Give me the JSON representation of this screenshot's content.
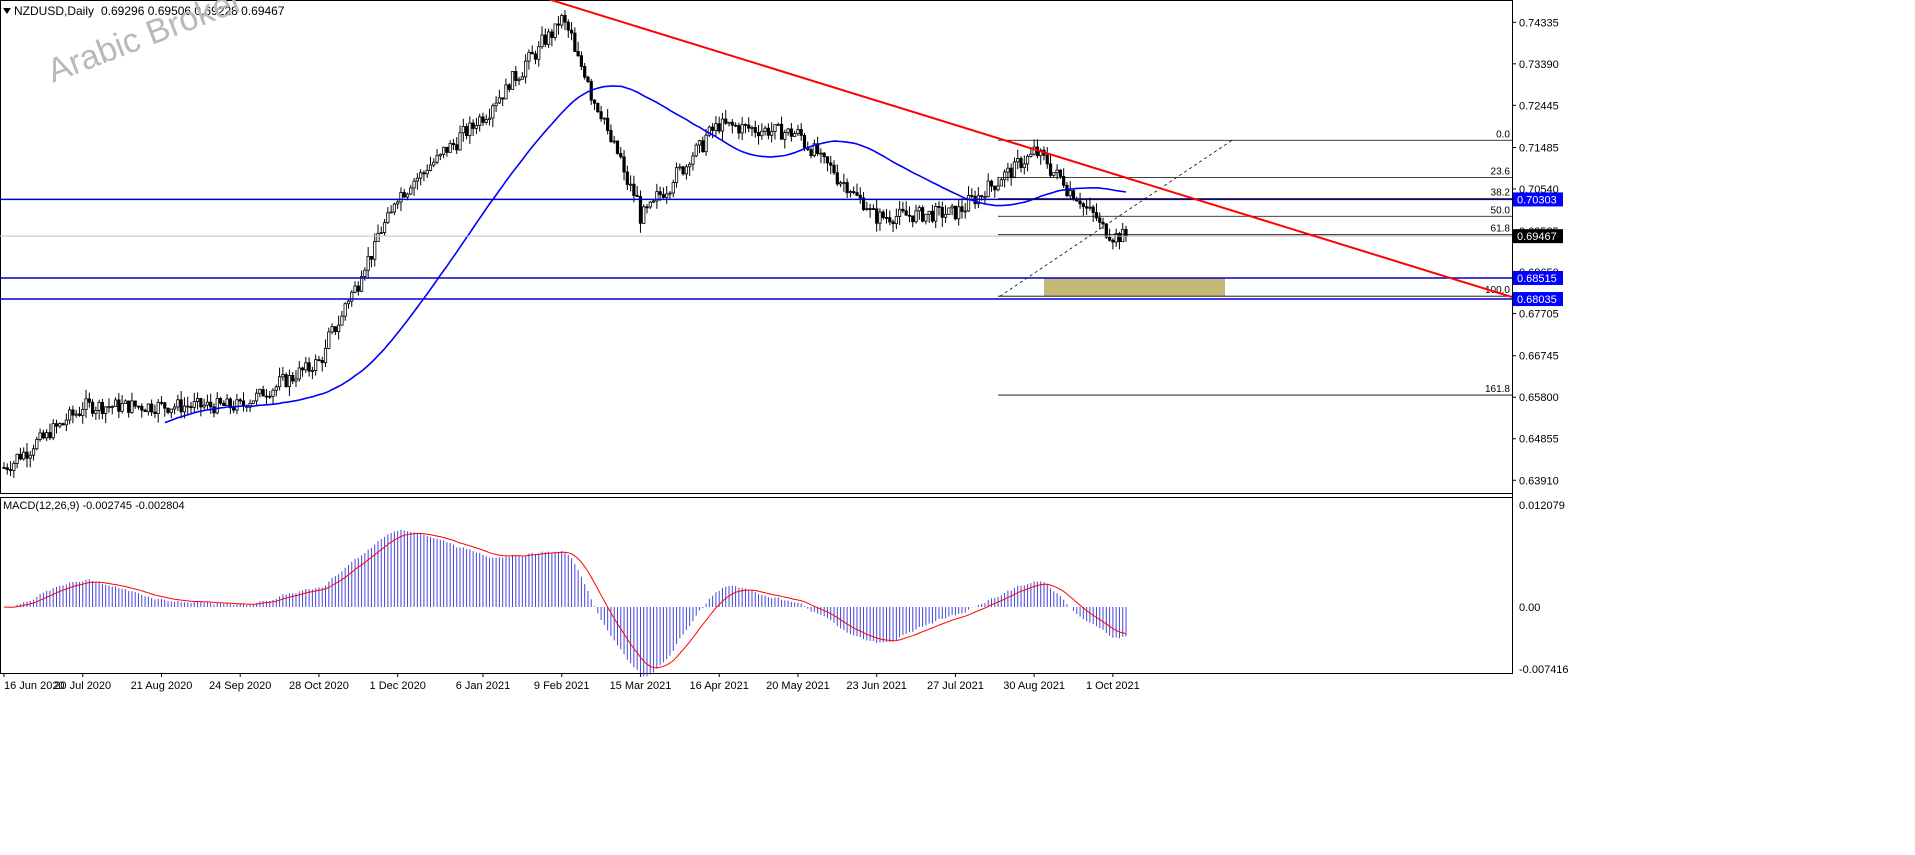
{
  "header": {
    "symbol": "NZDUSD,Daily",
    "ohlc": "0.69296 0.69506 0.69228 0.69467",
    "watermark": "Arabic Broker"
  },
  "price_axis": {
    "ticks": [
      "0.74335",
      "0.73390",
      "0.72445",
      "0.71485",
      "0.70540",
      "0.69585",
      "0.68650",
      "0.67705",
      "0.66745",
      "0.65800",
      "0.64855",
      "0.63910"
    ],
    "current_price": "0.69467"
  },
  "horizontal_levels": [
    {
      "label": "0.70303",
      "value": 0.70303
    },
    {
      "label": "0.68515",
      "value": 0.68515
    },
    {
      "label": "0.68035",
      "value": 0.68035
    }
  ],
  "fibonacci": {
    "levels": [
      {
        "label": "0.0",
        "value": 0.7165
      },
      {
        "label": "23.6",
        "value": 0.708
      },
      {
        "label": "38.2",
        "value": 0.7032
      },
      {
        "label": "50.0",
        "value": 0.6992
      },
      {
        "label": "61.8",
        "value": 0.695
      },
      {
        "label": "100.0",
        "value": 0.681
      },
      {
        "label": "161.8",
        "value": 0.6585
      }
    ]
  },
  "macd": {
    "label": "MACD(12,26,9) -0.002745 -0.002804",
    "ticks": [
      "0.012079",
      "0.00",
      "0.00",
      "-0.007416"
    ]
  },
  "time_axis": [
    "16 Jun 2020",
    "20 Jul 2020",
    "21 Aug 2020",
    "24 Sep 2020",
    "28 Oct 2020",
    "1 Dec 2020",
    "6 Jan 2021",
    "9 Feb 2021",
    "15 Mar 2021",
    "16 Apr 2021",
    "20 May 2021",
    "23 Jun 2021",
    "27 Jul 2021",
    "30 Aug 2021",
    "1 Oct 2021"
  ],
  "colors": {
    "candles": "#000000",
    "moving_average": "#0000ff",
    "trendline": "#ff0000",
    "support_resistance": "#0000cc",
    "label_box": "#0000ff",
    "demand_zone": "#b8ac5c",
    "macd_histogram": "#4444dd",
    "macd_signal": "#ff0000"
  },
  "chart_data": {
    "type": "candlestick",
    "symbol": "NZDUSD",
    "timeframe": "Daily",
    "ylim": [
      0.6362,
      0.7482
    ],
    "approx_close_path": [
      {
        "date": "16 Jun 2020",
        "close": 0.642
      },
      {
        "date": "20 Jul 2020",
        "close": 0.656
      },
      {
        "date": "21 Aug 2020",
        "close": 0.656
      },
      {
        "date": "24 Sep 2020",
        "close": 0.656
      },
      {
        "date": "28 Oct 2020",
        "close": 0.666
      },
      {
        "date": "1 Dec 2020",
        "close": 0.704
      },
      {
        "date": "6 Jan 2021",
        "close": 0.722
      },
      {
        "date": "9 Feb 2021",
        "close": 0.744
      },
      {
        "date": "15 Mar 2021",
        "close": 0.699
      },
      {
        "date": "16 Apr 2021",
        "close": 0.72
      },
      {
        "date": "20 May 2021",
        "close": 0.718
      },
      {
        "date": "23 Jun 2021",
        "close": 0.699
      },
      {
        "date": "27 Jul 2021",
        "close": 0.7
      },
      {
        "date": "30 Aug 2021",
        "close": 0.714
      },
      {
        "date": "1 Oct 2021",
        "close": 0.6947
      }
    ],
    "trendline": {
      "start": {
        "date": "9 Feb 2021",
        "value": 0.7465
      },
      "end_value": 0.6808
    },
    "demand_zone": {
      "top": 0.68515,
      "bottom": 0.681
    },
    "macd": {
      "ylim": [
        -0.0075,
        0.0125
      ],
      "last_main": -0.002745,
      "last_signal": -0.002804
    }
  }
}
